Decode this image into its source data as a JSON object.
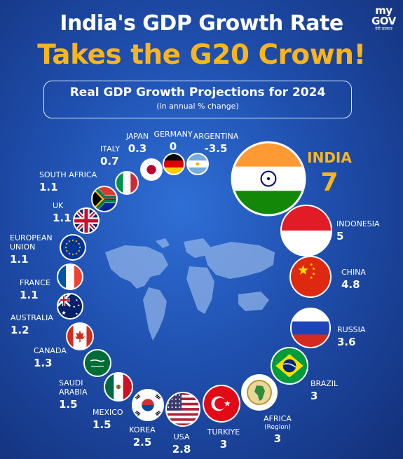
{
  "brand": {
    "name": "my GOV",
    "tagline": "मेरी सरकार"
  },
  "title_line1": "India's GDP Growth Rate",
  "title_line2": "Takes the G20 Crown!",
  "subtitle": "Real GDP Growth Projections for 2024",
  "subtitle_note": "(in annual % change)",
  "colors": {
    "accent": "#f9b51b",
    "background": "#1f4fae",
    "text": "#ffffff"
  },
  "chart_data": {
    "type": "bar",
    "title": "Real GDP Growth Projections for 2024",
    "unit": "(in annual % change)",
    "categories": [
      "INDIA",
      "INDONESIA",
      "CHINA",
      "RUSSIA",
      "BRAZIL",
      "AFRICA",
      "TURKIYE",
      "USA",
      "KOREA",
      "MEXICO",
      "SAUDI ARABIA",
      "CANADA",
      "AUSTRALIA",
      "FRANCE",
      "EUROPEAN UNION",
      "UK",
      "SOUTH AFRICA",
      "ITALY",
      "JAPAN",
      "GERMANY",
      "ARGENTINA"
    ],
    "values": [
      7,
      5,
      4.8,
      3.6,
      3,
      3,
      3,
      2.8,
      2.5,
      1.5,
      1.5,
      1.3,
      1.2,
      1.1,
      1.1,
      1.1,
      1.1,
      0.7,
      0.3,
      0,
      -3.5
    ],
    "countries": [
      {
        "name": "INDIA",
        "value": "7",
        "flag": "india-flag"
      },
      {
        "name": "INDONESIA",
        "value": "5",
        "flag": "indonesia-flag"
      },
      {
        "name": "CHINA",
        "value": "4.8",
        "flag": "china-flag"
      },
      {
        "name": "RUSSIA",
        "value": "3.6",
        "flag": "russia-flag"
      },
      {
        "name": "BRAZIL",
        "value": "3",
        "flag": "brazil-flag"
      },
      {
        "name": "AFRICA",
        "note": "(Region)",
        "value": "3",
        "flag": "african-union-flag"
      },
      {
        "name": "TURKIYE",
        "value": "3",
        "flag": "turkiye-flag"
      },
      {
        "name": "USA",
        "value": "2.8",
        "flag": "usa-flag"
      },
      {
        "name": "KOREA",
        "value": "2.5",
        "flag": "korea-flag"
      },
      {
        "name": "MEXICO",
        "value": "1.5",
        "flag": "mexico-flag"
      },
      {
        "name": "SAUDI",
        "name2": "ARABIA",
        "value": "1.5",
        "flag": "saudi-arabia-flag"
      },
      {
        "name": "CANADA",
        "value": "1.3",
        "flag": "canada-flag"
      },
      {
        "name": "AUSTRALIA",
        "value": "1.2",
        "flag": "australia-flag"
      },
      {
        "name": "FRANCE",
        "value": "1.1",
        "flag": "france-flag"
      },
      {
        "name": "EUROPEAN",
        "name2": "UNION",
        "value": "1.1",
        "flag": "eu-flag"
      },
      {
        "name": "UK",
        "value": "1.1",
        "flag": "uk-flag"
      },
      {
        "name": "SOUTH AFRICA",
        "value": "1.1",
        "flag": "south-africa-flag"
      },
      {
        "name": "ITALY",
        "value": "0.7",
        "flag": "italy-flag"
      },
      {
        "name": "JAPAN",
        "value": "0.3",
        "flag": "japan-flag"
      },
      {
        "name": "GERMANY",
        "value": "0",
        "flag": "germany-flag"
      },
      {
        "name": "ARGENTINA",
        "value": "-3.5",
        "flag": "argentina-flag"
      }
    ]
  }
}
